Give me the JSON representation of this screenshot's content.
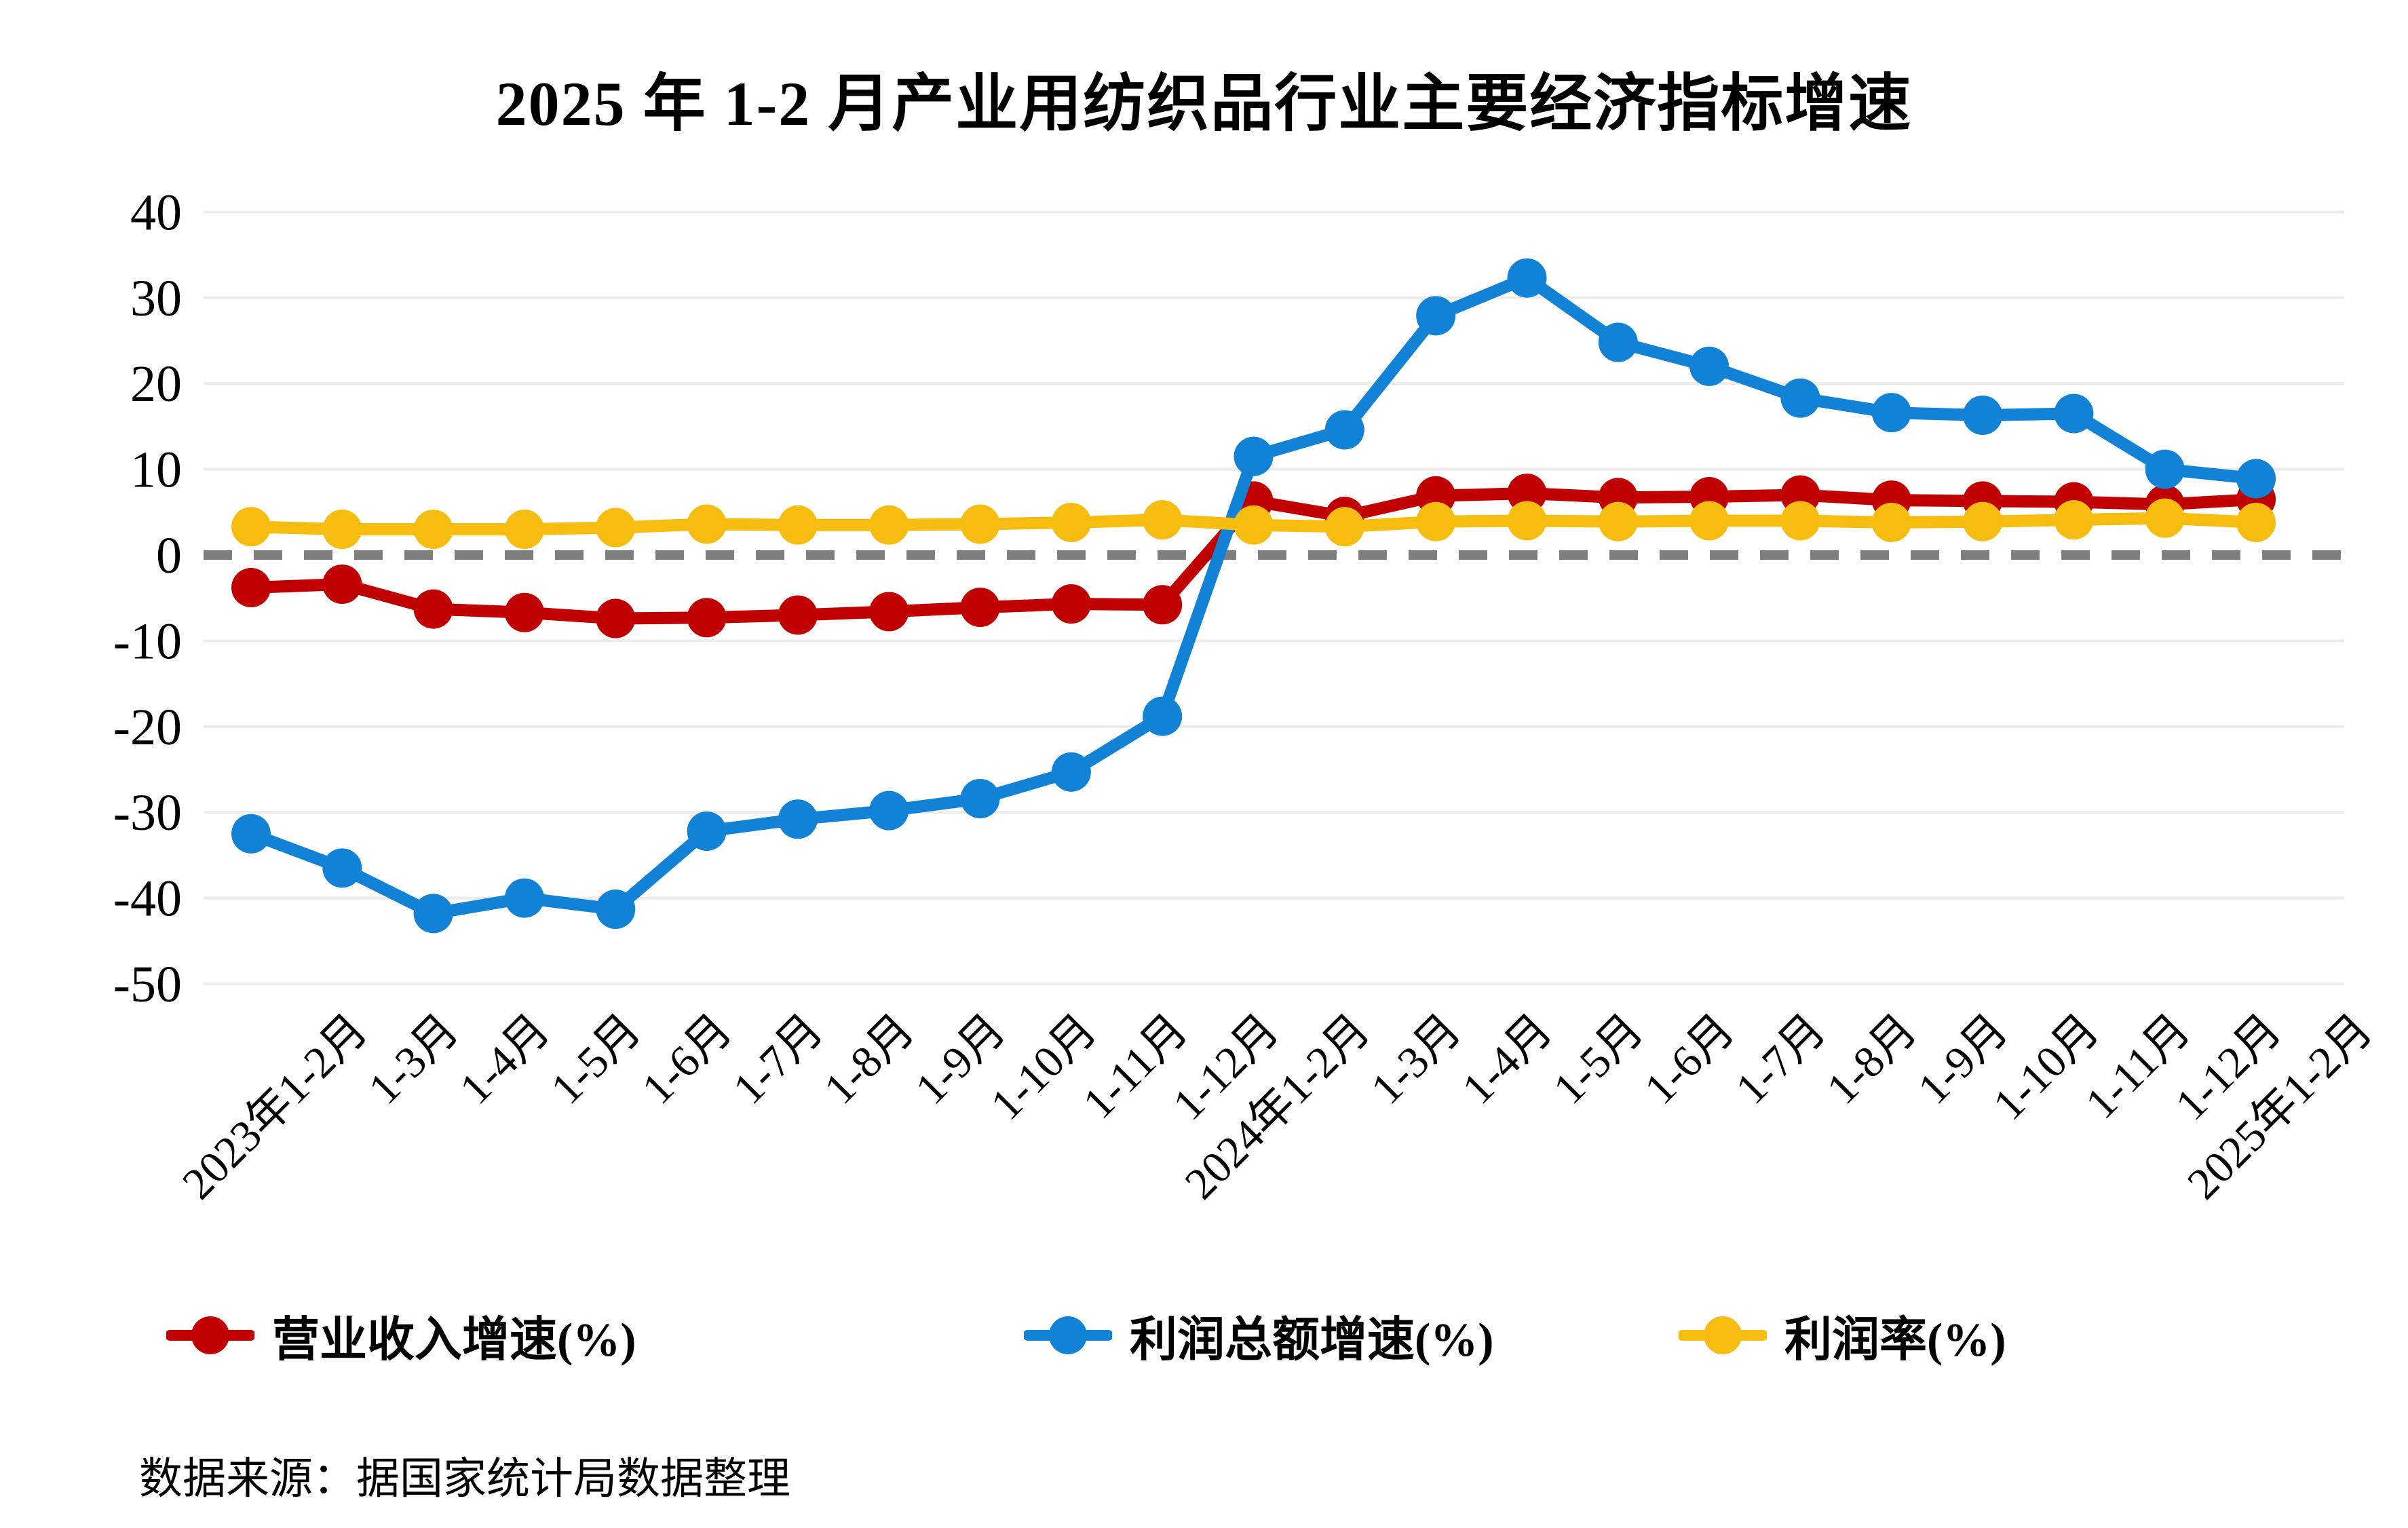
{
  "title": "2025 年 1-2 月产业用纺织品行业主要经济指标增速",
  "source_note": "数据来源：据国家统计局数据整理",
  "colors": {
    "revenue": "#C00000",
    "profit": "#1282D6",
    "margin": "#F6BD10",
    "zero_line": "#7F7F7F",
    "gridline": "#ECECEC",
    "text": "#000000"
  },
  "chart_data": {
    "type": "line",
    "title": "2025 年 1-2 月产业用纺织品行业主要经济指标增速",
    "categories": [
      "2023年1-2月",
      "1-3月",
      "1-4月",
      "1-5月",
      "1-6月",
      "1-7月",
      "1-8月",
      "1-9月",
      "1-10月",
      "1-11月",
      "1-12月",
      "2024年1-2月",
      "1-3月",
      "1-4月",
      "1-5月",
      "1-6月",
      "1-7月",
      "1-8月",
      "1-9月",
      "1-10月",
      "1-11月",
      "1-12月",
      "2025年1-2月"
    ],
    "series": [
      {
        "name": "营业收入增速(%)",
        "color_key": "revenue",
        "values": [
          -3.8,
          -3.4,
          -6.3,
          -6.7,
          -7.4,
          -7.3,
          -7.0,
          -6.6,
          -6.1,
          -5.7,
          -5.8,
          6.3,
          4.5,
          6.9,
          7.2,
          6.7,
          6.8,
          7.0,
          6.4,
          6.3,
          6.2,
          5.9,
          6.5
        ]
      },
      {
        "name": "利润总额增速(%)",
        "color_key": "profit",
        "values": [
          -32.5,
          -36.5,
          -41.8,
          -40.0,
          -41.3,
          -32.2,
          -30.8,
          -29.8,
          -28.4,
          -25.3,
          -18.8,
          11.5,
          14.6,
          27.9,
          32.3,
          24.8,
          22.0,
          18.3,
          16.6,
          16.3,
          16.5,
          10.0,
          8.9
        ]
      },
      {
        "name": "利润率(%)",
        "color_key": "margin",
        "values": [
          3.3,
          3.0,
          3.0,
          3.0,
          3.2,
          3.6,
          3.5,
          3.5,
          3.6,
          3.8,
          4.1,
          3.5,
          3.3,
          3.9,
          4.0,
          3.9,
          4.0,
          4.0,
          3.8,
          3.9,
          4.1,
          4.3,
          3.8
        ]
      }
    ],
    "ylim": [
      -50,
      40
    ],
    "yticks": [
      40,
      30,
      20,
      10,
      0,
      -10,
      -20,
      -30,
      -40,
      -50
    ],
    "grid": "horizontal",
    "zero_line_dashed": true,
    "legend_position": "bottom",
    "xlabel": "",
    "ylabel": ""
  }
}
